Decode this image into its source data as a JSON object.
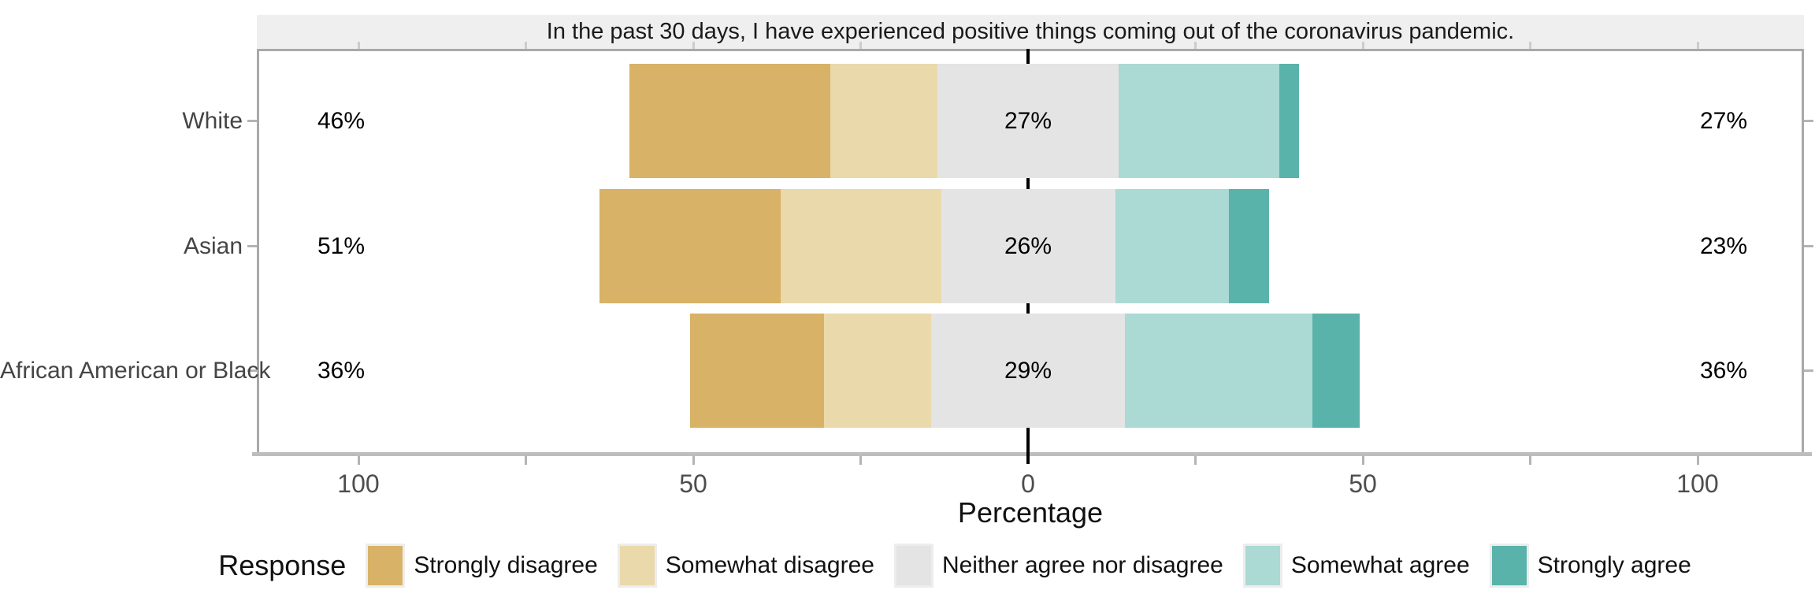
{
  "strip_title": "In the past 30 days, I have experienced positive things coming out of the coronavirus pandemic.",
  "axis": {
    "label": "Percentage",
    "labeled_ticks": [
      {
        "text": "100",
        "value": -100
      },
      {
        "text": "50",
        "value": -50
      },
      {
        "text": "0",
        "value": 0
      },
      {
        "text": "50",
        "value": 50
      },
      {
        "text": "100",
        "value": 100
      }
    ],
    "minor_tick_values": [
      -100,
      -75,
      -50,
      -25,
      25,
      50,
      75,
      100
    ]
  },
  "legend": {
    "title": "Response",
    "items": [
      {
        "label": "Strongly disagree",
        "color": "#d8b266"
      },
      {
        "label": "Somewhat disagree",
        "color": "#ead9ab"
      },
      {
        "label": "Neither agree nor disagree",
        "color": "#e4e4e4"
      },
      {
        "label": "Somewhat agree",
        "color": "#abd9d3"
      },
      {
        "label": "Strongly agree",
        "color": "#5ab3aa"
      }
    ]
  },
  "chart_data": {
    "type": "bar",
    "subtype": "diverging-stacked-likert",
    "title": "In the past 30 days, I have experienced positive things coming out of the coronavirus pandemic.",
    "xlabel": "Percentage",
    "xlim": [
      -116,
      116
    ],
    "grid": "off",
    "legend_position": "bottom",
    "note": "Neither category is centered on 0; disagree segments extend left, agree segments right.",
    "categories": [
      "White",
      "Asian",
      "African American or Black"
    ],
    "series": [
      {
        "name": "Strongly disagree",
        "color": "#d8b266",
        "values": [
          30,
          27,
          20
        ]
      },
      {
        "name": "Somewhat disagree",
        "color": "#ead9ab",
        "values": [
          16,
          24,
          16
        ]
      },
      {
        "name": "Neither agree nor disagree",
        "color": "#e4e4e4",
        "values": [
          27,
          26,
          29
        ]
      },
      {
        "name": "Somewhat agree",
        "color": "#abd9d3",
        "values": [
          24,
          17,
          28
        ]
      },
      {
        "name": "Strongly agree",
        "color": "#5ab3aa",
        "values": [
          3,
          6,
          7
        ]
      }
    ],
    "row_labels": {
      "left": [
        "46%",
        "51%",
        "36%"
      ],
      "center": [
        "27%",
        "26%",
        "29%"
      ],
      "right": [
        "27%",
        "23%",
        "36%"
      ]
    }
  },
  "colors": {
    "strip_bg": "#efefef",
    "panel_border": "#a9a9a9",
    "axis_line": "#bdbdbd",
    "zero_line": "#000000",
    "tick": "#b4b4b4",
    "category_text": "#454545",
    "axis_text": "#4d4d4d"
  }
}
